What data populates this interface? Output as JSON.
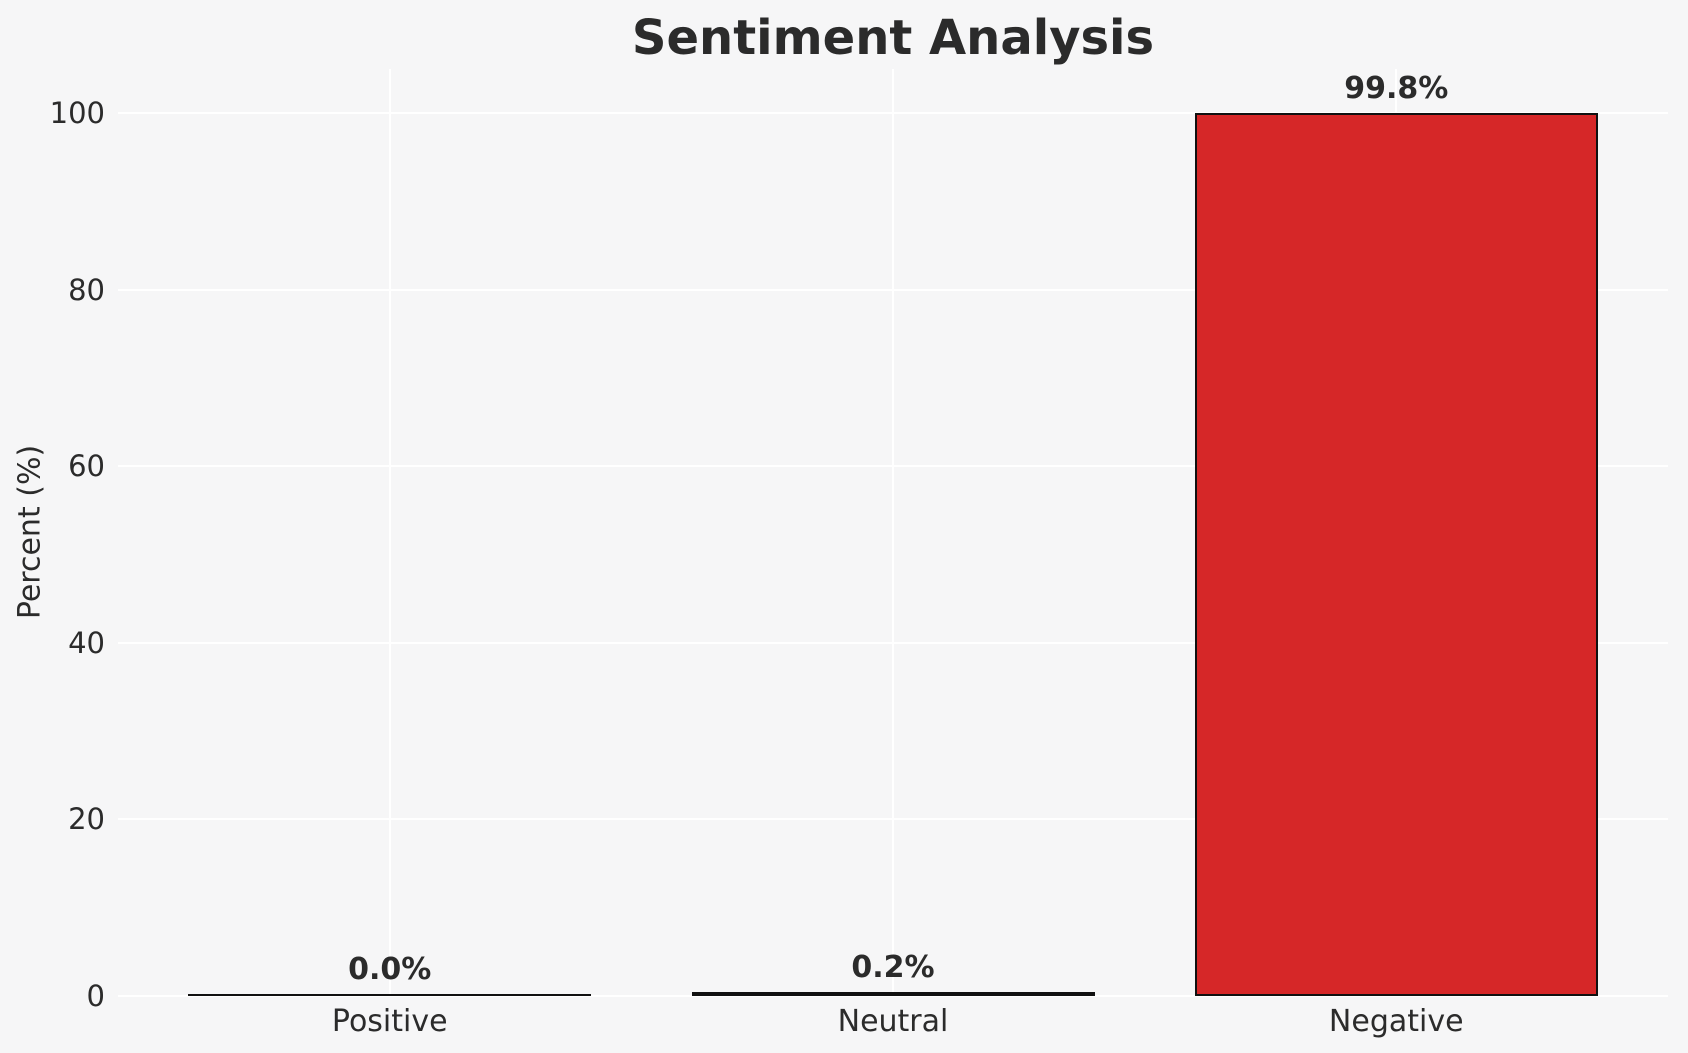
{
  "chart_data": {
    "type": "bar",
    "title": "Sentiment Analysis",
    "xlabel": "",
    "ylabel": "Percent (%)",
    "categories": [
      "Positive",
      "Neutral",
      "Negative"
    ],
    "values": [
      0.0,
      0.2,
      99.8
    ],
    "value_labels": [
      "0.0%",
      "0.2%",
      "99.8%"
    ],
    "yticks": [
      0,
      20,
      40,
      60,
      80,
      100
    ],
    "ytick_labels": [
      "0",
      "20",
      "40",
      "60",
      "80",
      "100"
    ],
    "ylim": [
      0,
      105
    ],
    "grid": true,
    "legend_position": "none",
    "colors": {
      "bar_fill": "#d62728",
      "bar_edge": "#111111",
      "background": "#f6f6f7",
      "gridline": "#ffffff",
      "text": "#2b2b2b"
    }
  }
}
